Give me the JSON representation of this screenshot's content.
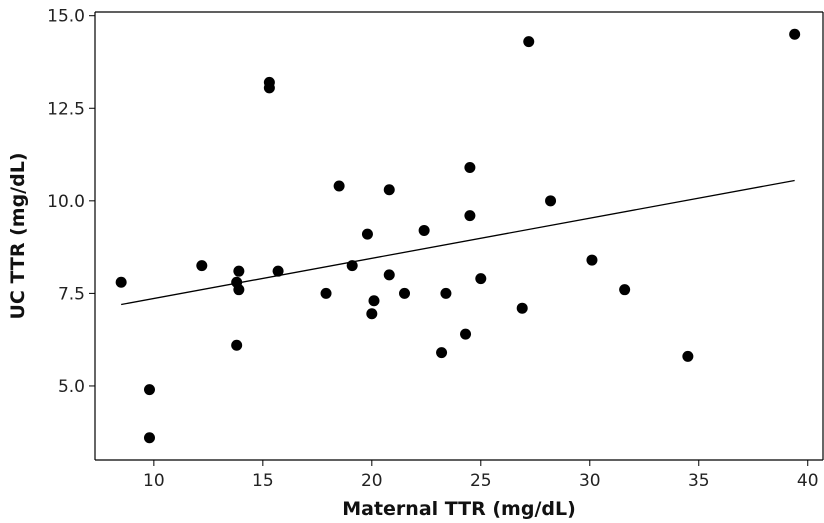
{
  "chart_data": {
    "type": "scatter",
    "xlabel": "Maternal TTR (mg/dL)",
    "ylabel": "UC TTR (mg/dL)",
    "xlim": [
      7.3,
      40.7
    ],
    "ylim": [
      3.0,
      15.1
    ],
    "x_ticks": [
      10,
      15,
      20,
      25,
      30,
      35,
      40
    ],
    "y_ticks": [
      5.0,
      7.5,
      10.0,
      12.5,
      15.0
    ],
    "x_tick_labels": [
      "10",
      "15",
      "20",
      "25",
      "30",
      "35",
      "40"
    ],
    "y_tick_labels": [
      "5.0",
      "7.5",
      "10.0",
      "12.5",
      "15.0"
    ],
    "grid": false,
    "colors": {
      "points": "#000000",
      "line": "#000000",
      "axis": "#000000"
    },
    "points": [
      {
        "x": 8.5,
        "y": 7.8
      },
      {
        "x": 9.8,
        "y": 4.9
      },
      {
        "x": 9.8,
        "y": 3.6
      },
      {
        "x": 12.2,
        "y": 8.25
      },
      {
        "x": 13.8,
        "y": 7.8
      },
      {
        "x": 13.9,
        "y": 8.1
      },
      {
        "x": 13.9,
        "y": 7.6
      },
      {
        "x": 13.8,
        "y": 6.1
      },
      {
        "x": 15.3,
        "y": 13.2
      },
      {
        "x": 15.3,
        "y": 13.05
      },
      {
        "x": 15.7,
        "y": 8.1
      },
      {
        "x": 17.9,
        "y": 7.5
      },
      {
        "x": 18.5,
        "y": 10.4
      },
      {
        "x": 19.1,
        "y": 8.25
      },
      {
        "x": 19.8,
        "y": 9.1
      },
      {
        "x": 20.1,
        "y": 7.3
      },
      {
        "x": 20.0,
        "y": 6.95
      },
      {
        "x": 20.8,
        "y": 10.3
      },
      {
        "x": 20.8,
        "y": 8.0
      },
      {
        "x": 21.5,
        "y": 7.5
      },
      {
        "x": 22.4,
        "y": 9.2
      },
      {
        "x": 23.2,
        "y": 5.9
      },
      {
        "x": 23.4,
        "y": 7.5
      },
      {
        "x": 24.3,
        "y": 6.4
      },
      {
        "x": 24.5,
        "y": 10.9
      },
      {
        "x": 24.5,
        "y": 9.6
      },
      {
        "x": 25.0,
        "y": 7.9
      },
      {
        "x": 26.9,
        "y": 7.1
      },
      {
        "x": 27.2,
        "y": 14.3
      },
      {
        "x": 28.2,
        "y": 10.0
      },
      {
        "x": 30.1,
        "y": 8.4
      },
      {
        "x": 31.6,
        "y": 7.6
      },
      {
        "x": 34.5,
        "y": 5.8
      },
      {
        "x": 39.4,
        "y": 14.5
      }
    ],
    "trendline": {
      "x": [
        8.5,
        39.4
      ],
      "y": [
        7.2,
        10.55
      ]
    }
  }
}
